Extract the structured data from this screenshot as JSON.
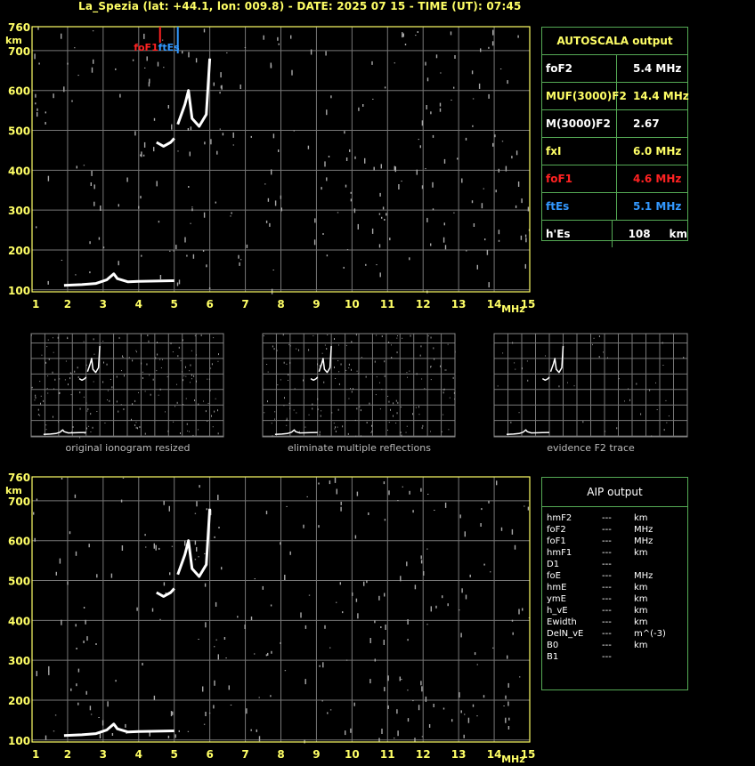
{
  "title": "La_Spezia (lat: +44.1, lon: 009.8) - DATE: 2025 07 15 - TIME (UT): 07:45",
  "axis": {
    "y_top_label": "760",
    "y_unit": "km",
    "y_ticks": [
      "700",
      "600",
      "500",
      "400",
      "300",
      "200",
      "100"
    ],
    "x_ticks": [
      "1",
      "2",
      "3",
      "4",
      "5",
      "6",
      "7",
      "8",
      "9",
      "10",
      "11",
      "12",
      "13",
      "14",
      "15"
    ],
    "x_unit": "MHz"
  },
  "markers": {
    "foF1_label": "foF1",
    "ftEs_label": "ftEs"
  },
  "autoscala": {
    "title": "AUTOSCALA output",
    "rows": [
      {
        "k": "foF2",
        "v": "5.4 MHz",
        "color": "#ffffff"
      },
      {
        "k": "MUF(3000)F2",
        "v": "14.4 MHz",
        "color": "#ffff66"
      },
      {
        "k": "M(3000)F2",
        "v": "2.67",
        "color": "#ffffff"
      },
      {
        "k": "fxI",
        "v": "6.0 MHz",
        "color": "#ffff66"
      },
      {
        "k": "foF1",
        "v": "4.6 MHz",
        "color": "#ff2222"
      },
      {
        "k": "ftEs",
        "v": "5.1 MHz",
        "color": "#3399ff"
      },
      {
        "k": "h'Es",
        "v": "108     km",
        "color": "#ffffff"
      }
    ]
  },
  "thumbnails": [
    {
      "caption": "original ionogram resized"
    },
    {
      "caption": "eliminate multiple reflections"
    },
    {
      "caption": "evidence F2 trace"
    }
  ],
  "aip": {
    "title": "AIP output",
    "rows": [
      [
        "hmF2",
        "---",
        "km"
      ],
      [
        "foF2",
        "---",
        "MHz"
      ],
      [
        "foF1",
        "---",
        "MHz"
      ],
      [
        "hmF1",
        "---",
        "km"
      ],
      [
        "D1",
        "---",
        ""
      ],
      [
        "foE",
        "---",
        "MHz"
      ],
      [
        "hmE",
        "---",
        "km"
      ],
      [
        "ymE",
        "---",
        "km"
      ],
      [
        "h_vE",
        "---",
        "km"
      ],
      [
        "Ewidth",
        "---",
        "km"
      ],
      [
        "DelN_vE",
        "---",
        "m^(-3)"
      ],
      [
        "B0",
        "---",
        "km"
      ],
      [
        "B1",
        "---",
        ""
      ]
    ]
  },
  "chart_data": {
    "type": "scatter",
    "title": "La_Spezia (lat: +44.1, lon: 009.8) - DATE: 2025 07 15 - TIME (UT): 07:45",
    "xlabel": "MHz",
    "ylabel": "km",
    "xlim": [
      1,
      15
    ],
    "ylim": [
      95,
      760
    ],
    "grid": true,
    "series": [
      {
        "name": "Es trace",
        "points": [
          [
            1.9,
            111
          ],
          [
            2.4,
            113
          ],
          [
            2.8,
            116
          ],
          [
            3.1,
            125
          ],
          [
            3.3,
            140
          ],
          [
            3.4,
            128
          ],
          [
            3.7,
            120
          ],
          [
            4.0,
            121
          ],
          [
            4.5,
            122
          ],
          [
            5.0,
            123
          ]
        ]
      },
      {
        "name": "F1 trace",
        "points": [
          [
            4.5,
            470
          ],
          [
            4.7,
            460
          ],
          [
            4.9,
            470
          ],
          [
            5.0,
            480
          ]
        ]
      },
      {
        "name": "F2 trace",
        "points": [
          [
            5.1,
            515
          ],
          [
            5.3,
            565
          ],
          [
            5.4,
            600
          ],
          [
            5.5,
            530
          ],
          [
            5.7,
            510
          ],
          [
            5.9,
            540
          ],
          [
            6.0,
            680
          ]
        ]
      }
    ]
  }
}
